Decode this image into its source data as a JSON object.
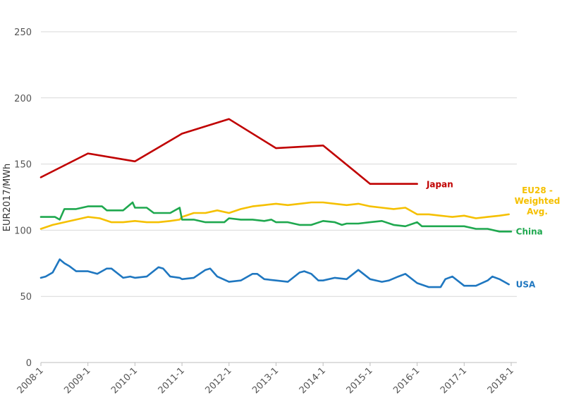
{
  "chart_data": {
    "type": "line",
    "title": "",
    "xlabel": "",
    "ylabel": "EUR2017/MWh",
    "ylim": [
      0,
      250
    ],
    "yticks": [
      0,
      50,
      100,
      150,
      200,
      250
    ],
    "xlim": [
      2008.0,
      2018.0
    ],
    "xticks": [
      "2008-1",
      "2009-1",
      "2010-1",
      "2011-1",
      "2012-1",
      "2013-1",
      "2014-1",
      "2015-1",
      "2016-1",
      "2017-1",
      "2018-1"
    ],
    "grid": "horizontal",
    "legend": "inline labels at right end of each series",
    "series": [
      {
        "name": "Japan",
        "label_lines": [
          "Japan"
        ],
        "color": "#c00000",
        "x": [
          2008.0,
          2009.0,
          2010.0,
          2011.0,
          2012.0,
          2013.0,
          2014.0,
          2015.0,
          2016.0
        ],
        "y": [
          140,
          158,
          152,
          173,
          184,
          162,
          164,
          135,
          135
        ]
      },
      {
        "name": "EU28 - Weighted Avg.",
        "label_lines": [
          "EU28 -",
          "Weighted",
          "Avg."
        ],
        "color": "#f5c000",
        "x": [
          2008.0,
          2008.25,
          2008.5,
          2008.75,
          2009.0,
          2009.25,
          2009.5,
          2009.75,
          2010.0,
          2010.25,
          2010.5,
          2010.75,
          2010.95,
          2011.0,
          2011.25,
          2011.5,
          2011.75,
          2012.0,
          2012.25,
          2012.5,
          2012.75,
          2013.0,
          2013.25,
          2013.5,
          2013.75,
          2014.0,
          2014.25,
          2014.5,
          2014.75,
          2015.0,
          2015.25,
          2015.5,
          2015.75,
          2016.0,
          2016.25,
          2016.5,
          2016.75,
          2017.0,
          2017.25,
          2017.5,
          2017.75,
          2017.95
        ],
        "y": [
          101,
          104,
          106,
          108,
          110,
          109,
          106,
          106,
          107,
          106,
          106,
          107,
          108,
          110,
          113,
          113,
          115,
          113,
          116,
          118,
          119,
          120,
          119,
          120,
          121,
          121,
          120,
          119,
          120,
          118,
          117,
          116,
          117,
          112,
          112,
          111,
          110,
          111,
          109,
          110,
          111,
          112
        ]
      },
      {
        "name": "China",
        "label_lines": [
          "China"
        ],
        "color": "#1fa84f",
        "x": [
          2008.0,
          2008.3,
          2008.4,
          2008.5,
          2008.75,
          2009.0,
          2009.3,
          2009.4,
          2009.75,
          2009.95,
          2010.0,
          2010.25,
          2010.4,
          2010.75,
          2010.95,
          2011.0,
          2011.25,
          2011.5,
          2011.75,
          2011.9,
          2012.0,
          2012.25,
          2012.5,
          2012.75,
          2012.9,
          2013.0,
          2013.25,
          2013.5,
          2013.75,
          2014.0,
          2014.25,
          2014.4,
          2014.5,
          2014.75,
          2015.0,
          2015.25,
          2015.5,
          2015.75,
          2016.0,
          2016.1,
          2016.25,
          2016.5,
          2016.75,
          2017.0,
          2017.25,
          2017.5,
          2017.75,
          2018.0
        ],
        "y": [
          110,
          110,
          108,
          116,
          116,
          118,
          118,
          115,
          115,
          121,
          117,
          117,
          113,
          113,
          117,
          108,
          108,
          106,
          106,
          106,
          109,
          108,
          108,
          107,
          108,
          106,
          106,
          104,
          104,
          107,
          106,
          104,
          105,
          105,
          106,
          107,
          104,
          103,
          106,
          103,
          103,
          103,
          103,
          103,
          101,
          101,
          99,
          99
        ]
      },
      {
        "name": "USA",
        "label_lines": [
          "USA"
        ],
        "color": "#1f77c0",
        "x": [
          2008.0,
          2008.1,
          2008.25,
          2008.4,
          2008.5,
          2008.6,
          2008.75,
          2009.0,
          2009.2,
          2009.4,
          2009.5,
          2009.75,
          2009.9,
          2010.0,
          2010.25,
          2010.5,
          2010.6,
          2010.75,
          2010.95,
          2011.0,
          2011.25,
          2011.5,
          2011.6,
          2011.75,
          2012.0,
          2012.25,
          2012.5,
          2012.6,
          2012.75,
          2013.0,
          2013.25,
          2013.5,
          2013.6,
          2013.75,
          2013.9,
          2014.0,
          2014.25,
          2014.5,
          2014.75,
          2015.0,
          2015.25,
          2015.4,
          2015.6,
          2015.75,
          2016.0,
          2016.25,
          2016.5,
          2016.6,
          2016.75,
          2017.0,
          2017.25,
          2017.5,
          2017.6,
          2017.75,
          2017.95
        ],
        "y": [
          64,
          65,
          68,
          78,
          75,
          73,
          69,
          69,
          67,
          71,
          71,
          64,
          65,
          64,
          65,
          72,
          71,
          65,
          64,
          63,
          64,
          70,
          71,
          65,
          61,
          62,
          67,
          67,
          63,
          62,
          61,
          68,
          69,
          67,
          62,
          62,
          64,
          63,
          70,
          63,
          61,
          62,
          65,
          67,
          60,
          57,
          57,
          63,
          65,
          58,
          58,
          62,
          65,
          63,
          59
        ]
      }
    ]
  }
}
